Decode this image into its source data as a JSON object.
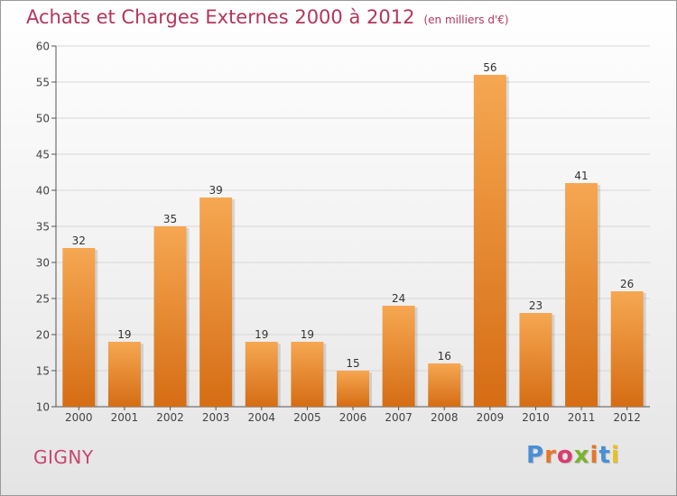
{
  "header": {
    "title": "Achats et Charges Externes 2000 à 2012",
    "subtitle": "(en milliers d'€)"
  },
  "footer": {
    "town": "GIGNY",
    "brand": "Proxiti",
    "brand_colors": [
      "#4a8fd6",
      "#e8752a",
      "#d93d6f",
      "#7ab32e",
      "#e8752a",
      "#4a8fd6",
      "#e8c21a"
    ]
  },
  "colors": {
    "bar_top": "#f6a752",
    "bar_bottom": "#d56d14",
    "title": "#b3365a",
    "axis": "#555555",
    "grid": "#d7d7d7"
  },
  "chart_data": {
    "type": "bar",
    "categories": [
      "2000",
      "2001",
      "2002",
      "2003",
      "2004",
      "2005",
      "2006",
      "2007",
      "2008",
      "2009",
      "2010",
      "2011",
      "2012"
    ],
    "values": [
      32,
      19,
      35,
      39,
      19,
      19,
      15,
      24,
      16,
      56,
      23,
      41,
      26
    ],
    "yticks": [
      10,
      15,
      20,
      25,
      30,
      35,
      40,
      45,
      50,
      55,
      60
    ],
    "ylim": [
      10,
      60
    ],
    "grid": true,
    "data_labels": true,
    "legend": "none"
  }
}
